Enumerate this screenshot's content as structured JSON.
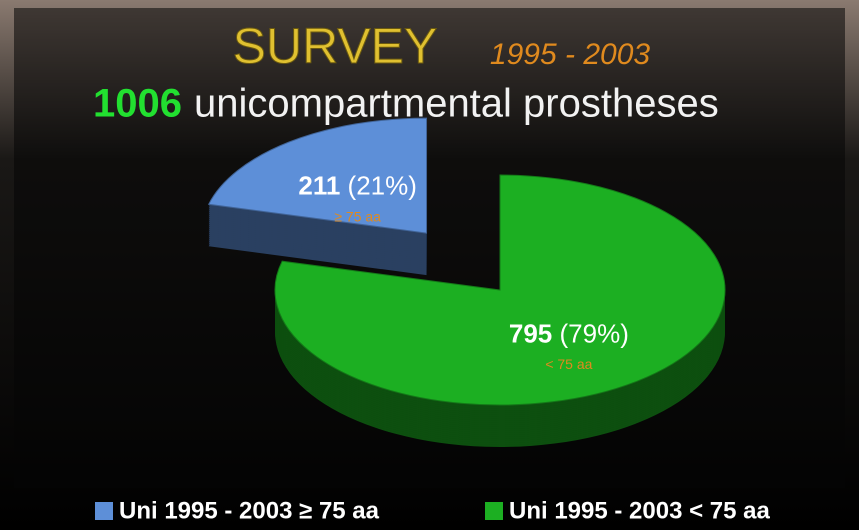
{
  "chart_data": {
    "type": "pie",
    "title": "SURVEY",
    "subtitle": "1995 - 2003",
    "total": 1006,
    "total_text": "unicompartmental prostheses",
    "categories": [
      "Uni 1995 - 2003 ≥ 75 aa",
      "Uni 1995 - 2003 < 75 aa"
    ],
    "values": [
      211,
      795
    ],
    "shares": [
      21,
      79
    ],
    "share_labels": [
      "(21%)",
      "(79%)"
    ],
    "slice_labels": [
      "≥ 75 aa",
      "< 75 aa"
    ],
    "colors": [
      "#5d8fd8",
      "#1caf22"
    ],
    "exploded": [
      true,
      false
    ]
  }
}
